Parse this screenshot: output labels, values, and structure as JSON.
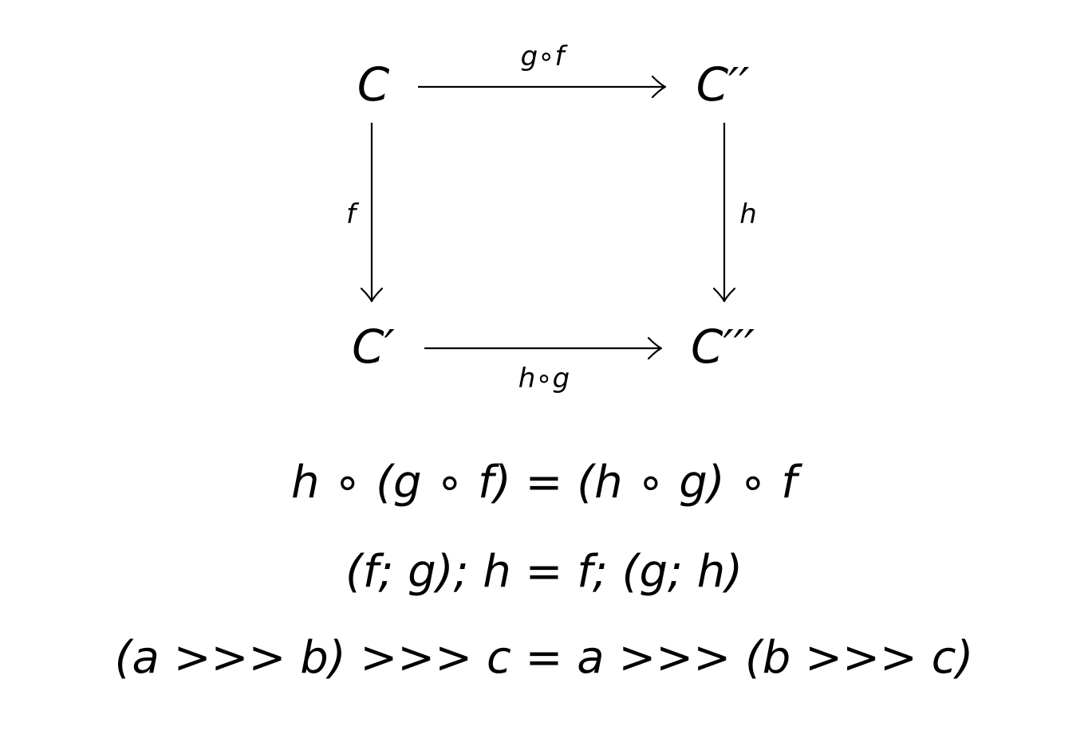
{
  "diagram": {
    "nodes": {
      "top_left": "C",
      "top_right": "C′′",
      "bottom_left": "C′",
      "bottom_right": "C′′′"
    },
    "edges": {
      "top": "g∘f",
      "left": "f",
      "right": "h",
      "bottom": "h∘g"
    }
  },
  "equations": [
    "h ∘ (g ∘ f) = (h ∘ g) ∘ f",
    "(f; g); h = f; (g; h)",
    "(a >>> b) >>> c = a >>> (b >>> c)"
  ]
}
